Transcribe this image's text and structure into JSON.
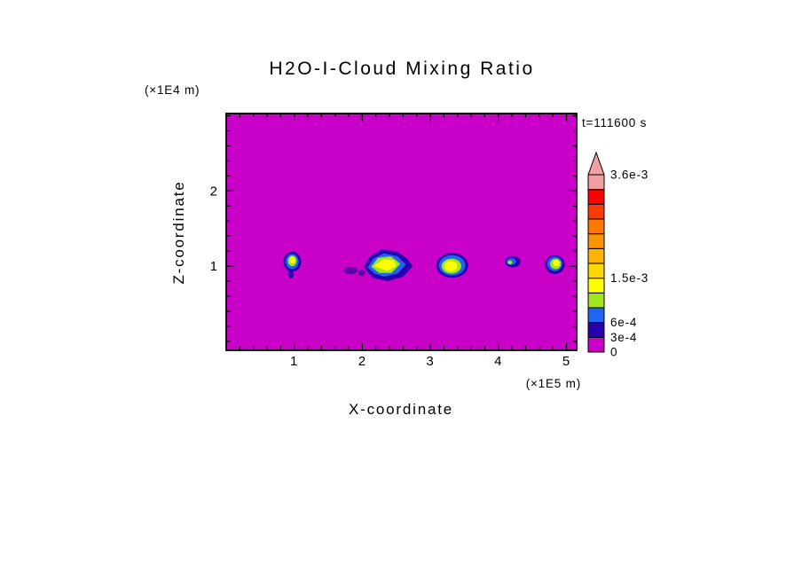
{
  "title": "H2O-I-Cloud Mixing Ratio",
  "timestamp": "t=111600 s",
  "axes": {
    "x_label": "X-coordinate",
    "x_unit": "(×1E5 m)",
    "y_label": "Z-coordinate",
    "y_unit": "(×1E4 m)"
  },
  "chart_data": {
    "type": "heatmap",
    "title": "H2O-I-Cloud Mixing Ratio",
    "xlabel": "X-coordinate",
    "x_unit": "×1E5 m",
    "ylabel": "Z-coordinate",
    "y_unit": "×1E4 m",
    "time_label": "t=111600 s",
    "time_seconds": 111600,
    "x_range": [
      0,
      5.15
    ],
    "y_range": [
      -0.12,
      3.03
    ],
    "x_major_ticks": [
      1,
      2,
      3,
      4,
      5
    ],
    "y_major_ticks": [
      1,
      2
    ],
    "minor_tick_step": 0.2,
    "background_value": 0,
    "background_color": "#C800C8",
    "colorbar": {
      "min": 0,
      "max": 0.0036,
      "step": 0.0003,
      "segment_colors": [
        "#C800C8",
        "#2800AF",
        "#2064F0",
        "#A0E61E",
        "#FFFF00",
        "#FFD700",
        "#FFB400",
        "#FF9600",
        "#FF7800",
        "#FF3C00",
        "#FF0000",
        "#F0A0A0"
      ],
      "overflow_color": "#F0A0A0",
      "labels": [
        {
          "text": "3.6e-3",
          "level": 0.0036
        },
        {
          "text": "1.5e-3",
          "level": 0.0015
        },
        {
          "text": "6e-4",
          "level": 0.0006
        },
        {
          "text": "3e-4",
          "level": 0.0003
        },
        {
          "text": "0",
          "level": 0
        }
      ]
    },
    "features": [
      {
        "name": "cloud-blob-1",
        "layers": [
          {
            "shape": "ellipse",
            "cx": 0.95,
            "cz": 0.89,
            "rx": 0.04,
            "ry": 0.055,
            "color": "#2800AF"
          },
          {
            "shape": "ellipse",
            "cx": 0.97,
            "cz": 1.06,
            "rx": 0.13,
            "ry": 0.135,
            "color": "#2800AF"
          },
          {
            "shape": "ellipse",
            "cx": 0.97,
            "cz": 1.06,
            "rx": 0.095,
            "ry": 0.1,
            "color": "#2064F0"
          },
          {
            "shape": "ellipse",
            "cx": 0.97,
            "cz": 1.07,
            "rx": 0.065,
            "ry": 0.07,
            "color": "#A0E61E"
          },
          {
            "shape": "ellipse",
            "cx": 0.975,
            "cz": 1.08,
            "rx": 0.04,
            "ry": 0.045,
            "color": "#FFFF00"
          }
        ]
      },
      {
        "name": "cloud-smudge",
        "layers": [
          {
            "shape": "ellipse",
            "cx": 1.83,
            "cz": 0.94,
            "rx": 0.1,
            "ry": 0.05,
            "color": "#6400AA"
          },
          {
            "shape": "ellipse",
            "cx": 1.99,
            "cz": 0.91,
            "rx": 0.05,
            "ry": 0.04,
            "color": "#6400AA"
          }
        ]
      },
      {
        "name": "cloud-blob-2",
        "layers": [
          {
            "shape": "polygon",
            "points": [
              [
                2.02,
                0.98
              ],
              [
                2.1,
                1.12
              ],
              [
                2.28,
                1.22
              ],
              [
                2.5,
                1.2
              ],
              [
                2.66,
                1.1
              ],
              [
                2.74,
                1.0
              ],
              [
                2.6,
                0.86
              ],
              [
                2.38,
                0.8
              ],
              [
                2.16,
                0.84
              ]
            ],
            "color": "#2800AF"
          },
          {
            "shape": "polygon",
            "points": [
              [
                2.08,
                0.98
              ],
              [
                2.16,
                1.1
              ],
              [
                2.32,
                1.17
              ],
              [
                2.52,
                1.13
              ],
              [
                2.64,
                1.02
              ],
              [
                2.52,
                0.9
              ],
              [
                2.32,
                0.86
              ],
              [
                2.18,
                0.9
              ]
            ],
            "color": "#2064F0"
          },
          {
            "shape": "polygon",
            "points": [
              [
                2.13,
                0.99
              ],
              [
                2.23,
                1.11
              ],
              [
                2.42,
                1.13
              ],
              [
                2.56,
                1.03
              ],
              [
                2.43,
                0.91
              ],
              [
                2.25,
                0.91
              ]
            ],
            "color": "#A0E61E"
          },
          {
            "shape": "polygon",
            "points": [
              [
                2.17,
                1.0
              ],
              [
                2.3,
                1.09
              ],
              [
                2.46,
                1.08
              ],
              [
                2.5,
                1.0
              ],
              [
                2.36,
                0.94
              ]
            ],
            "color": "#FFFF00"
          }
        ]
      },
      {
        "name": "cloud-blob-3",
        "layers": [
          {
            "shape": "ellipse",
            "cx": 3.32,
            "cz": 1.01,
            "rx": 0.235,
            "ry": 0.165,
            "color": "#2800AF"
          },
          {
            "shape": "ellipse",
            "cx": 3.32,
            "cz": 1.01,
            "rx": 0.195,
            "ry": 0.135,
            "color": "#2064F0"
          },
          {
            "shape": "ellipse",
            "cx": 3.31,
            "cz": 1.0,
            "rx": 0.145,
            "ry": 0.1,
            "color": "#A0E61E"
          },
          {
            "shape": "ellipse",
            "cx": 3.3,
            "cz": 1.0,
            "rx": 0.095,
            "ry": 0.07,
            "color": "#FFFF00"
          }
        ]
      },
      {
        "name": "cloud-blob-4",
        "layers": [
          {
            "shape": "ellipse",
            "cx": 4.21,
            "cz": 1.06,
            "rx": 0.115,
            "ry": 0.075,
            "color": "#2800AF"
          },
          {
            "shape": "ellipse",
            "cx": 4.19,
            "cz": 1.06,
            "rx": 0.07,
            "ry": 0.045,
            "color": "#2064F0"
          },
          {
            "shape": "ellipse",
            "cx": 4.17,
            "cz": 1.05,
            "rx": 0.032,
            "ry": 0.025,
            "color": "#A0E61E"
          }
        ]
      },
      {
        "name": "cloud-blob-5",
        "layers": [
          {
            "shape": "ellipse",
            "cx": 4.83,
            "cz": 1.02,
            "rx": 0.145,
            "ry": 0.125,
            "color": "#2800AF"
          },
          {
            "shape": "ellipse",
            "cx": 4.83,
            "cz": 1.03,
            "rx": 0.11,
            "ry": 0.095,
            "color": "#2064F0"
          },
          {
            "shape": "ellipse",
            "cx": 4.84,
            "cz": 1.03,
            "rx": 0.08,
            "ry": 0.07,
            "color": "#A0E61E"
          },
          {
            "shape": "ellipse",
            "cx": 4.85,
            "cz": 1.04,
            "rx": 0.047,
            "ry": 0.042,
            "color": "#FFFF00"
          }
        ]
      }
    ]
  }
}
